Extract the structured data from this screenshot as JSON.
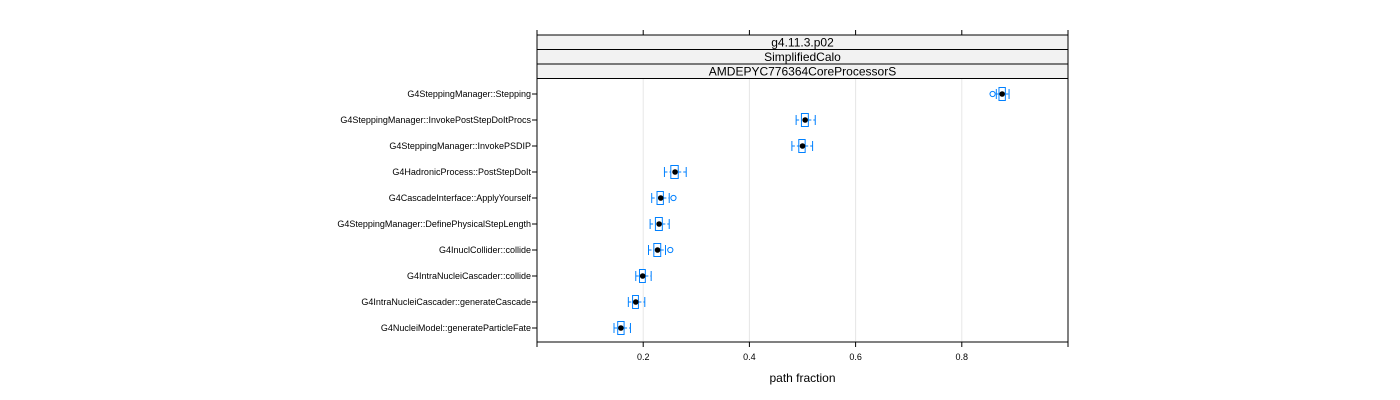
{
  "chart_data": {
    "type": "boxplot",
    "panel_strips": [
      "g4.11.3.p02",
      "SimplifiedCalo",
      "AMDEPYC776364CoreProcessorS"
    ],
    "xlabel": "path fraction",
    "ylabel": "",
    "xlim": [
      0.0,
      1.0
    ],
    "xticks": [
      0.2,
      0.4,
      0.6,
      0.8
    ],
    "xtick_labels": [
      "0.2",
      "0.4",
      "0.6",
      "0.8"
    ],
    "grid": true,
    "categories": [
      "G4SteppingManager::Stepping",
      "G4SteppingManager::InvokePostStepDoItProcs",
      "G4SteppingManager::InvokePSDIP",
      "G4HadronicProcess::PostStepDoIt",
      "G4CascadeInterface::ApplyYourself",
      "G4SteppingManager::DefinePhysicalStepLength",
      "G4InuclCollider::collide",
      "G4IntraNucleiCascader::collide",
      "G4IntraNucleiCascader::generateCascade",
      "G4NucleiModel::generateParticleFate"
    ],
    "boxes": [
      {
        "min": 0.865,
        "q1": 0.87,
        "median": 0.876,
        "q3": 0.882,
        "max": 0.889,
        "outliers": [
          0.858
        ]
      },
      {
        "min": 0.488,
        "q1": 0.498,
        "median": 0.505,
        "q3": 0.511,
        "max": 0.524,
        "outliers": []
      },
      {
        "min": 0.48,
        "q1": 0.493,
        "median": 0.5,
        "q3": 0.505,
        "max": 0.519,
        "outliers": []
      },
      {
        "min": 0.24,
        "q1": 0.252,
        "median": 0.26,
        "q3": 0.266,
        "max": 0.281,
        "outliers": []
      },
      {
        "min": 0.216,
        "q1": 0.226,
        "median": 0.233,
        "q3": 0.238,
        "max": 0.249,
        "outliers": [
          0.257
        ]
      },
      {
        "min": 0.213,
        "q1": 0.223,
        "median": 0.23,
        "q3": 0.236,
        "max": 0.249,
        "outliers": []
      },
      {
        "min": 0.21,
        "q1": 0.22,
        "median": 0.227,
        "q3": 0.233,
        "max": 0.242,
        "outliers": [
          0.251
        ]
      },
      {
        "min": 0.186,
        "q1": 0.193,
        "median": 0.199,
        "q3": 0.204,
        "max": 0.215,
        "outliers": []
      },
      {
        "min": 0.172,
        "q1": 0.18,
        "median": 0.186,
        "q3": 0.191,
        "max": 0.203,
        "outliers": []
      },
      {
        "min": 0.145,
        "q1": 0.152,
        "median": 0.158,
        "q3": 0.164,
        "max": 0.176,
        "outliers": []
      }
    ],
    "colors": {
      "box": "#0080ff",
      "whisker": "#0080ff",
      "median_dot": "#000000",
      "outlier": "#0080ff",
      "strip_bg": "#f2f2f2",
      "grid": "#e6e6e6",
      "frame": "#000000"
    }
  }
}
